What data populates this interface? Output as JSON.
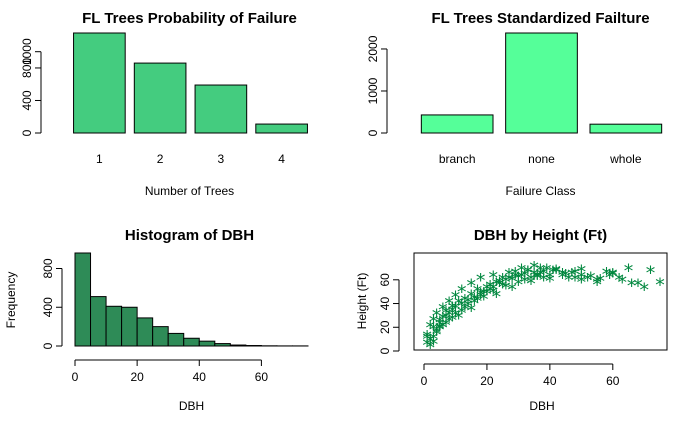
{
  "chart_data": [
    {
      "type": "bar",
      "title": "FL Trees Probability of Failure",
      "xlabel": "Number of Trees",
      "ylabel": "",
      "categories": [
        "1",
        "2",
        "3",
        "4"
      ],
      "values": [
        1230,
        860,
        590,
        110
      ],
      "ylim": [
        0,
        1230
      ],
      "yticks": [
        "0",
        "400",
        "800",
        "1000"
      ],
      "yticks_values": [
        0,
        400,
        800,
        1000
      ],
      "color": "#44cc7f"
    },
    {
      "type": "bar",
      "title": "FL Trees Standardized Failture",
      "xlabel": "Failure Class",
      "ylabel": "",
      "categories": [
        "branch",
        "none",
        "whole"
      ],
      "values": [
        430,
        2380,
        210
      ],
      "ylim": [
        0,
        2380
      ],
      "yticks": [
        "0",
        "1000",
        "2000"
      ],
      "yticks_values": [
        0,
        1000,
        2000
      ],
      "color": "#55ff99"
    },
    {
      "type": "bar",
      "title": "Histogram of DBH",
      "xlabel": "DBH",
      "ylabel": "Frequency",
      "bin_width": 5,
      "bin_start": 0,
      "values": [
        960,
        510,
        410,
        400,
        290,
        200,
        130,
        80,
        50,
        25,
        10,
        5,
        2,
        1,
        1
      ],
      "xlim": [
        0,
        75
      ],
      "ylim": [
        0,
        960
      ],
      "xticks": [
        "0",
        "20",
        "40",
        "60"
      ],
      "xticks_values": [
        0,
        20,
        40,
        60
      ],
      "yticks": [
        "0",
        "400",
        "800"
      ],
      "yticks_values": [
        0,
        400,
        800
      ],
      "color": "#2e8b57"
    },
    {
      "type": "scatter",
      "title": "DBH by Height (Ft)",
      "xlabel": "DBH",
      "ylabel": "Height (Ft)",
      "xlim": [
        0,
        75
      ],
      "ylim": [
        0,
        75
      ],
      "xticks": [
        "0",
        "20",
        "40",
        "60"
      ],
      "xticks_values": [
        0,
        20,
        40,
        60
      ],
      "yticks": [
        "0",
        "20",
        "40",
        "60"
      ],
      "yticks_values": [
        0,
        20,
        40,
        60
      ],
      "marker": "*",
      "color": "#00873e",
      "x": [
        1,
        1,
        2,
        2,
        3,
        3,
        4,
        4,
        5,
        5,
        6,
        6,
        7,
        7,
        8,
        8,
        9,
        9,
        10,
        10,
        11,
        12,
        12,
        13,
        14,
        15,
        15,
        16,
        17,
        18,
        18,
        19,
        20,
        21,
        22,
        22,
        23,
        24,
        25,
        26,
        27,
        28,
        29,
        30,
        31,
        32,
        33,
        34,
        35,
        36,
        37,
        38,
        40,
        42,
        44,
        46,
        48,
        50,
        52,
        55,
        58,
        60,
        63,
        65,
        68,
        72,
        75,
        2,
        3,
        4,
        5,
        6,
        8,
        10,
        12,
        14,
        16,
        18,
        20,
        22,
        24,
        26,
        28,
        30,
        32,
        34,
        36,
        38,
        40,
        42,
        45,
        48,
        50,
        55,
        60,
        1,
        3,
        5,
        7,
        9,
        11,
        13,
        15,
        17,
        19,
        21,
        23,
        25,
        27,
        29,
        31,
        33,
        35,
        37,
        39,
        41,
        44,
        47,
        50,
        53,
        56,
        59,
        62,
        66,
        70
      ],
      "y": [
        5,
        12,
        8,
        20,
        10,
        25,
        15,
        30,
        18,
        22,
        20,
        35,
        22,
        28,
        25,
        40,
        26,
        33,
        30,
        45,
        28,
        32,
        50,
        35,
        38,
        34,
        55,
        40,
        42,
        45,
        60,
        44,
        48,
        50,
        52,
        62,
        46,
        55,
        54,
        58,
        60,
        52,
        65,
        56,
        62,
        58,
        66,
        60,
        64,
        62,
        68,
        60,
        62,
        66,
        64,
        60,
        65,
        62,
        60,
        58,
        65,
        63,
        58,
        68,
        55,
        66,
        56,
        3,
        6,
        14,
        19,
        27,
        30,
        36,
        38,
        41,
        43,
        47,
        52,
        49,
        57,
        53,
        59,
        61,
        63,
        57,
        61,
        65,
        59,
        67,
        63,
        60,
        67,
        56,
        64,
        10,
        18,
        24,
        32,
        36,
        40,
        42,
        46,
        50,
        48,
        54,
        56,
        60,
        64,
        62,
        68,
        66,
        70,
        64,
        68,
        66,
        62,
        64,
        58,
        61,
        59,
        62,
        60,
        55,
        52
      ]
    }
  ]
}
